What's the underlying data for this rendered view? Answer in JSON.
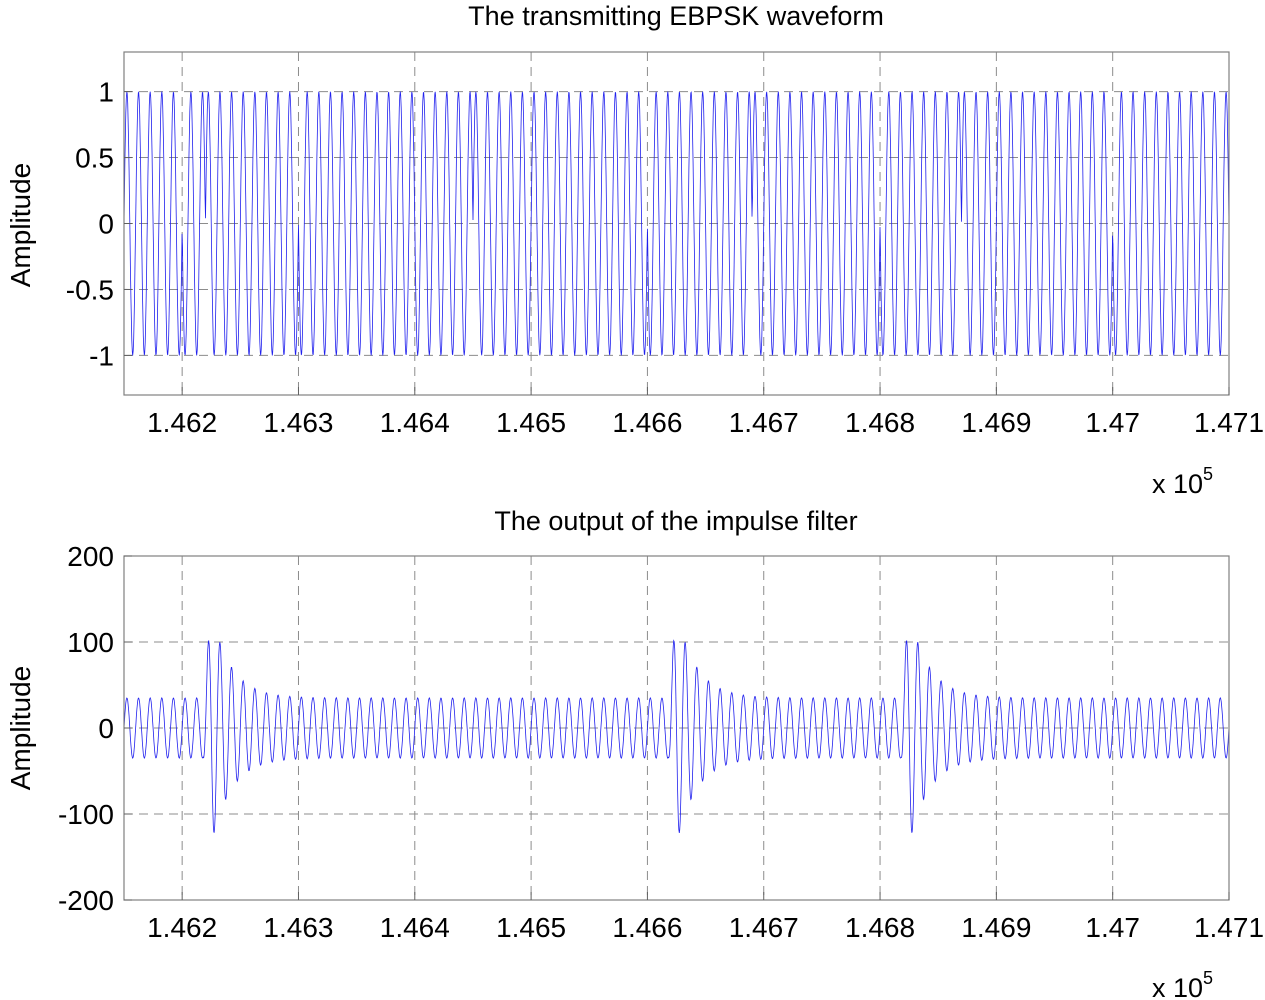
{
  "chart_data": [
    {
      "type": "line",
      "title": "The transmitting EBPSK waveform",
      "xlabel": "",
      "ylabel": "Amplitude",
      "x_multiplier": {
        "base": "x 10",
        "exponent": "5"
      },
      "xlim": [
        1.4615,
        1.471
      ],
      "ylim": [
        -1.3,
        1.3
      ],
      "xticks": [
        1.462,
        1.463,
        1.464,
        1.465,
        1.466,
        1.467,
        1.468,
        1.469,
        1.47,
        1.471
      ],
      "xtick_labels": [
        "1.462",
        "1.463",
        "1.464",
        "1.465",
        "1.466",
        "1.467",
        "1.468",
        "1.469",
        "1.47",
        "1.471"
      ],
      "yticks": [
        1,
        0.5,
        0,
        -0.5,
        -1
      ],
      "ytick_labels": [
        "1",
        "0.5",
        "0",
        "-0.5",
        "-1"
      ],
      "grid": true,
      "series_color": "#2020ee",
      "carrier_cycles_per_unit": 10000,
      "series": [
        {
          "amplitude": 1,
          "phase_jumps_x": [
            1.462,
            1.4622,
            1.463,
            1.4645,
            1.466,
            1.4669,
            1.468,
            1.4687,
            1.47,
            1.471
          ]
        }
      ]
    },
    {
      "type": "line",
      "title": "The output of the impulse filter",
      "xlabel": "",
      "ylabel": "Amplitude",
      "x_multiplier": {
        "base": "x 10",
        "exponent": "5"
      },
      "xlim": [
        1.4615,
        1.471
      ],
      "ylim": [
        -200,
        200
      ],
      "xticks": [
        1.462,
        1.463,
        1.464,
        1.465,
        1.466,
        1.467,
        1.468,
        1.469,
        1.47,
        1.471
      ],
      "xtick_labels": [
        "1.462",
        "1.463",
        "1.464",
        "1.465",
        "1.466",
        "1.467",
        "1.468",
        "1.469",
        "1.47",
        "1.471"
      ],
      "yticks": [
        200,
        100,
        0,
        -100,
        -200
      ],
      "ytick_labels": [
        "200",
        "100",
        "0",
        "-100",
        "-200"
      ],
      "grid": true,
      "series_color": "#2020ee",
      "carrier_cycles_per_unit": 10000,
      "series": [
        {
          "baseline_amplitude": 35,
          "peak_amplitude": 155,
          "burst_centers_x": [
            1.46222,
            1.46622,
            1.46822
          ]
        }
      ]
    }
  ]
}
